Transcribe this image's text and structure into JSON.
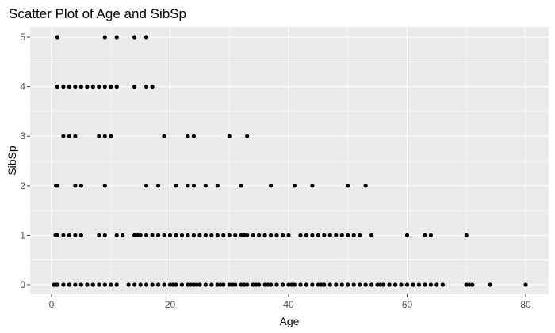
{
  "chart_data": {
    "type": "scatter",
    "title": "Scatter Plot of Age and SibSp",
    "xlabel": "Age",
    "ylabel": "SibSp",
    "xlim": [
      0,
      80
    ],
    "ylim": [
      0,
      5
    ],
    "x_ticks": [
      0,
      20,
      40,
      60,
      80
    ],
    "y_ticks": [
      0,
      1,
      2,
      3,
      4,
      5
    ],
    "grid": true,
    "colors": {
      "panel": "#ebebeb",
      "grid": "#ffffff",
      "point": "#000000",
      "tick": "#4d4d4d"
    },
    "series": [
      {
        "points": [
          {
            "x": 1,
            "y": 5
          },
          {
            "x": 9,
            "y": 5
          },
          {
            "x": 11,
            "y": 5
          },
          {
            "x": 14,
            "y": 5
          },
          {
            "x": 16,
            "y": 5
          },
          {
            "x": 1,
            "y": 4
          },
          {
            "x": 2,
            "y": 4
          },
          {
            "x": 3,
            "y": 4
          },
          {
            "x": 4,
            "y": 4
          },
          {
            "x": 5,
            "y": 4
          },
          {
            "x": 6,
            "y": 4
          },
          {
            "x": 7,
            "y": 4
          },
          {
            "x": 8,
            "y": 4
          },
          {
            "x": 9,
            "y": 4
          },
          {
            "x": 10,
            "y": 4
          },
          {
            "x": 11,
            "y": 4
          },
          {
            "x": 14,
            "y": 4
          },
          {
            "x": 16,
            "y": 4
          },
          {
            "x": 17,
            "y": 4
          },
          {
            "x": 2,
            "y": 3
          },
          {
            "x": 3,
            "y": 3
          },
          {
            "x": 4,
            "y": 3
          },
          {
            "x": 8,
            "y": 3
          },
          {
            "x": 9,
            "y": 3
          },
          {
            "x": 10,
            "y": 3
          },
          {
            "x": 19,
            "y": 3
          },
          {
            "x": 23,
            "y": 3
          },
          {
            "x": 24,
            "y": 3
          },
          {
            "x": 30,
            "y": 3
          },
          {
            "x": 33,
            "y": 3
          },
          {
            "x": 0.75,
            "y": 2
          },
          {
            "x": 1,
            "y": 2
          },
          {
            "x": 4,
            "y": 2
          },
          {
            "x": 5,
            "y": 2
          },
          {
            "x": 9,
            "y": 2
          },
          {
            "x": 16,
            "y": 2
          },
          {
            "x": 18,
            "y": 2
          },
          {
            "x": 21,
            "y": 2
          },
          {
            "x": 23,
            "y": 2
          },
          {
            "x": 24,
            "y": 2
          },
          {
            "x": 26,
            "y": 2
          },
          {
            "x": 28,
            "y": 2
          },
          {
            "x": 32,
            "y": 2
          },
          {
            "x": 37,
            "y": 2
          },
          {
            "x": 41,
            "y": 2
          },
          {
            "x": 44,
            "y": 2
          },
          {
            "x": 50,
            "y": 2
          },
          {
            "x": 53,
            "y": 2
          },
          {
            "x": 0.67,
            "y": 1
          },
          {
            "x": 0.83,
            "y": 1
          },
          {
            "x": 1,
            "y": 1
          },
          {
            "x": 2,
            "y": 1
          },
          {
            "x": 3,
            "y": 1
          },
          {
            "x": 4,
            "y": 1
          },
          {
            "x": 5,
            "y": 1
          },
          {
            "x": 8,
            "y": 1
          },
          {
            "x": 9,
            "y": 1
          },
          {
            "x": 11,
            "y": 1
          },
          {
            "x": 12,
            "y": 1
          },
          {
            "x": 14,
            "y": 1
          },
          {
            "x": 14.5,
            "y": 1
          },
          {
            "x": 15,
            "y": 1
          },
          {
            "x": 16,
            "y": 1
          },
          {
            "x": 17,
            "y": 1
          },
          {
            "x": 18,
            "y": 1
          },
          {
            "x": 19,
            "y": 1
          },
          {
            "x": 20,
            "y": 1
          },
          {
            "x": 21,
            "y": 1
          },
          {
            "x": 22,
            "y": 1
          },
          {
            "x": 23,
            "y": 1
          },
          {
            "x": 24,
            "y": 1
          },
          {
            "x": 25,
            "y": 1
          },
          {
            "x": 26,
            "y": 1
          },
          {
            "x": 27,
            "y": 1
          },
          {
            "x": 28,
            "y": 1
          },
          {
            "x": 29,
            "y": 1
          },
          {
            "x": 30,
            "y": 1
          },
          {
            "x": 31,
            "y": 1
          },
          {
            "x": 32,
            "y": 1
          },
          {
            "x": 32.5,
            "y": 1
          },
          {
            "x": 33,
            "y": 1
          },
          {
            "x": 34,
            "y": 1
          },
          {
            "x": 35,
            "y": 1
          },
          {
            "x": 36,
            "y": 1
          },
          {
            "x": 37,
            "y": 1
          },
          {
            "x": 38,
            "y": 1
          },
          {
            "x": 39,
            "y": 1
          },
          {
            "x": 40,
            "y": 1
          },
          {
            "x": 42,
            "y": 1
          },
          {
            "x": 43,
            "y": 1
          },
          {
            "x": 44,
            "y": 1
          },
          {
            "x": 45,
            "y": 1
          },
          {
            "x": 46,
            "y": 1
          },
          {
            "x": 47,
            "y": 1
          },
          {
            "x": 48,
            "y": 1
          },
          {
            "x": 49,
            "y": 1
          },
          {
            "x": 50,
            "y": 1
          },
          {
            "x": 51,
            "y": 1
          },
          {
            "x": 52,
            "y": 1
          },
          {
            "x": 54,
            "y": 1
          },
          {
            "x": 60,
            "y": 1
          },
          {
            "x": 63,
            "y": 1
          },
          {
            "x": 64,
            "y": 1
          },
          {
            "x": 70,
            "y": 1
          },
          {
            "x": 0.42,
            "y": 0
          },
          {
            "x": 0.83,
            "y": 0
          },
          {
            "x": 1,
            "y": 0
          },
          {
            "x": 2,
            "y": 0
          },
          {
            "x": 3,
            "y": 0
          },
          {
            "x": 4,
            "y": 0
          },
          {
            "x": 5,
            "y": 0
          },
          {
            "x": 6,
            "y": 0
          },
          {
            "x": 7,
            "y": 0
          },
          {
            "x": 8,
            "y": 0
          },
          {
            "x": 9,
            "y": 0
          },
          {
            "x": 10,
            "y": 0
          },
          {
            "x": 11,
            "y": 0
          },
          {
            "x": 13,
            "y": 0
          },
          {
            "x": 14,
            "y": 0
          },
          {
            "x": 15,
            "y": 0
          },
          {
            "x": 16,
            "y": 0
          },
          {
            "x": 17,
            "y": 0
          },
          {
            "x": 18,
            "y": 0
          },
          {
            "x": 19,
            "y": 0
          },
          {
            "x": 20,
            "y": 0
          },
          {
            "x": 20.5,
            "y": 0
          },
          {
            "x": 21,
            "y": 0
          },
          {
            "x": 22,
            "y": 0
          },
          {
            "x": 23,
            "y": 0
          },
          {
            "x": 23.5,
            "y": 0
          },
          {
            "x": 24,
            "y": 0
          },
          {
            "x": 24.5,
            "y": 0
          },
          {
            "x": 25,
            "y": 0
          },
          {
            "x": 26,
            "y": 0
          },
          {
            "x": 27,
            "y": 0
          },
          {
            "x": 28,
            "y": 0
          },
          {
            "x": 28.5,
            "y": 0
          },
          {
            "x": 29,
            "y": 0
          },
          {
            "x": 30,
            "y": 0
          },
          {
            "x": 30.5,
            "y": 0
          },
          {
            "x": 31,
            "y": 0
          },
          {
            "x": 32,
            "y": 0
          },
          {
            "x": 32.5,
            "y": 0
          },
          {
            "x": 33,
            "y": 0
          },
          {
            "x": 34,
            "y": 0
          },
          {
            "x": 34.5,
            "y": 0
          },
          {
            "x": 35,
            "y": 0
          },
          {
            "x": 36,
            "y": 0
          },
          {
            "x": 36.5,
            "y": 0
          },
          {
            "x": 37,
            "y": 0
          },
          {
            "x": 38,
            "y": 0
          },
          {
            "x": 39,
            "y": 0
          },
          {
            "x": 40,
            "y": 0
          },
          {
            "x": 40.5,
            "y": 0
          },
          {
            "x": 41,
            "y": 0
          },
          {
            "x": 42,
            "y": 0
          },
          {
            "x": 43,
            "y": 0
          },
          {
            "x": 44,
            "y": 0
          },
          {
            "x": 45,
            "y": 0
          },
          {
            "x": 45.5,
            "y": 0
          },
          {
            "x": 46,
            "y": 0
          },
          {
            "x": 47,
            "y": 0
          },
          {
            "x": 48,
            "y": 0
          },
          {
            "x": 49,
            "y": 0
          },
          {
            "x": 50,
            "y": 0
          },
          {
            "x": 51,
            "y": 0
          },
          {
            "x": 52,
            "y": 0
          },
          {
            "x": 53,
            "y": 0
          },
          {
            "x": 54,
            "y": 0
          },
          {
            "x": 55,
            "y": 0
          },
          {
            "x": 55.5,
            "y": 0
          },
          {
            "x": 56,
            "y": 0
          },
          {
            "x": 57,
            "y": 0
          },
          {
            "x": 58,
            "y": 0
          },
          {
            "x": 59,
            "y": 0
          },
          {
            "x": 60,
            "y": 0
          },
          {
            "x": 61,
            "y": 0
          },
          {
            "x": 62,
            "y": 0
          },
          {
            "x": 63,
            "y": 0
          },
          {
            "x": 64,
            "y": 0
          },
          {
            "x": 65,
            "y": 0
          },
          {
            "x": 66,
            "y": 0
          },
          {
            "x": 70,
            "y": 0
          },
          {
            "x": 70.5,
            "y": 0
          },
          {
            "x": 71,
            "y": 0
          },
          {
            "x": 74,
            "y": 0
          },
          {
            "x": 80,
            "y": 0
          }
        ]
      }
    ]
  }
}
